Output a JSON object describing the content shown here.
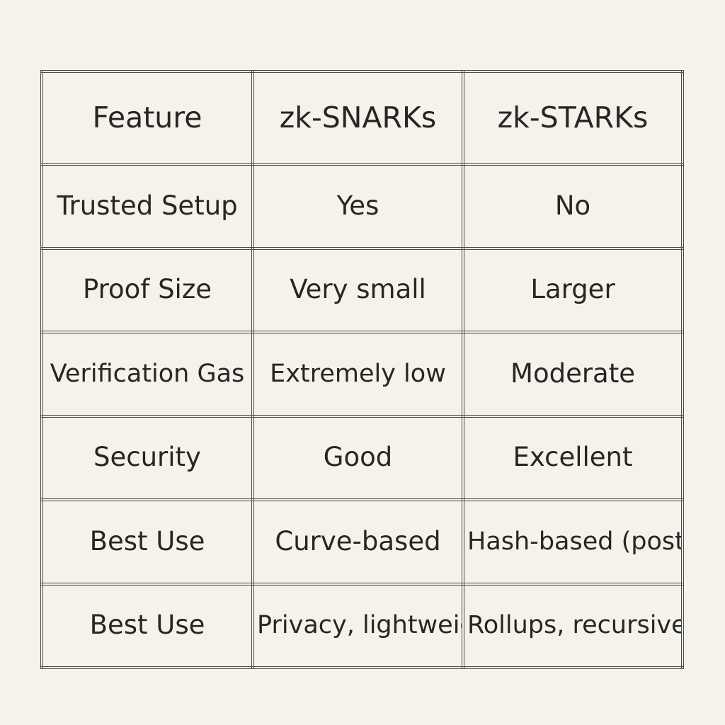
{
  "table": {
    "headers": [
      "Feature",
      "zk-SNARKs",
      "zk-STARKs"
    ],
    "rows": [
      {
        "feature": "Trusted Setup",
        "snarks": "Yes",
        "starks": "No"
      },
      {
        "feature": "Proof Size",
        "snarks": "Very small",
        "starks": "Larger"
      },
      {
        "feature": "Verification Gas",
        "snarks": "Extremely low",
        "starks": "Moderate"
      },
      {
        "feature": "Security",
        "snarks": "Good",
        "starks": "Excellent"
      },
      {
        "feature": "Best Use",
        "snarks": "Curve-based",
        "starks": "Hash-based\n(post-quantum)"
      },
      {
        "feature": "Best Use",
        "snarks": "Privacy,\nlightweight\nsystems",
        "starks": "Rollups,\nrecursive proofs"
      }
    ]
  },
  "colors": {
    "background": "#f5f2e9",
    "grid_line": "#4a4a4a",
    "text": "#262626"
  }
}
